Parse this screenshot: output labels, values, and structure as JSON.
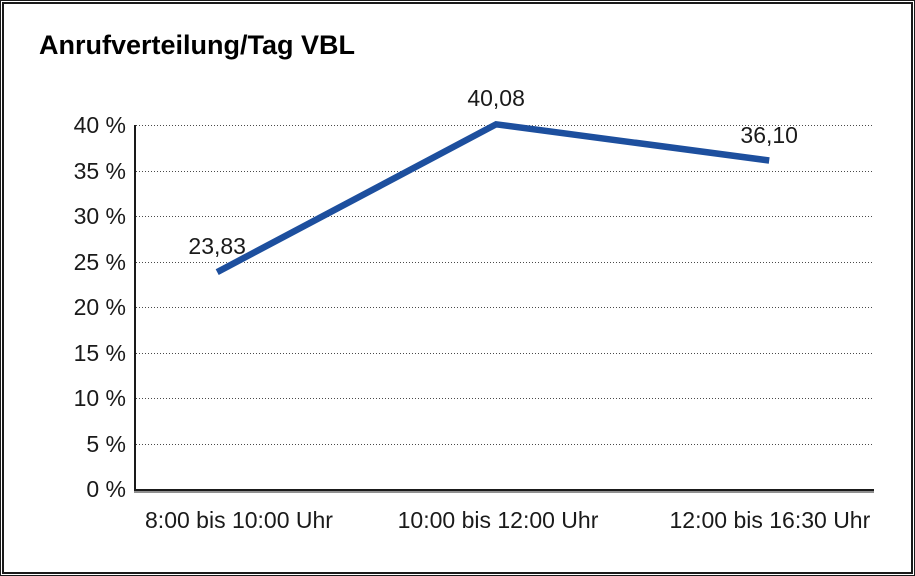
{
  "frame": {
    "background": "#ffffff",
    "border_color": "#1a1a1a"
  },
  "chart_data": {
    "type": "line",
    "title": "Anrufverteilung/Tag VBL",
    "categories": [
      "8:00 bis 10:00 Uhr",
      "10:00 bis 12:00 Uhr",
      "12:00 bis 16:30 Uhr"
    ],
    "values": [
      23.83,
      40.08,
      36.1
    ],
    "value_labels": [
      "23,83",
      "40,08",
      "36,10"
    ],
    "xlabel": "",
    "ylabel": "",
    "ylim": [
      0,
      40
    ],
    "y_tick_step": 5,
    "y_ticks": [
      {
        "value": 0,
        "label": "0 %"
      },
      {
        "value": 5,
        "label": "5 %"
      },
      {
        "value": 10,
        "label": "10 %"
      },
      {
        "value": 15,
        "label": "15 %"
      },
      {
        "value": 20,
        "label": "20 %"
      },
      {
        "value": 25,
        "label": "25 %"
      },
      {
        "value": 30,
        "label": "30 %"
      },
      {
        "value": 35,
        "label": "35 %"
      },
      {
        "value": 40,
        "label": "40 %"
      }
    ],
    "grid": "horizontal-dotted",
    "legend": "none",
    "line_color": "#1d4f9e",
    "grid_color": "#4a4a4a",
    "text_color": "#1a1a1a"
  }
}
